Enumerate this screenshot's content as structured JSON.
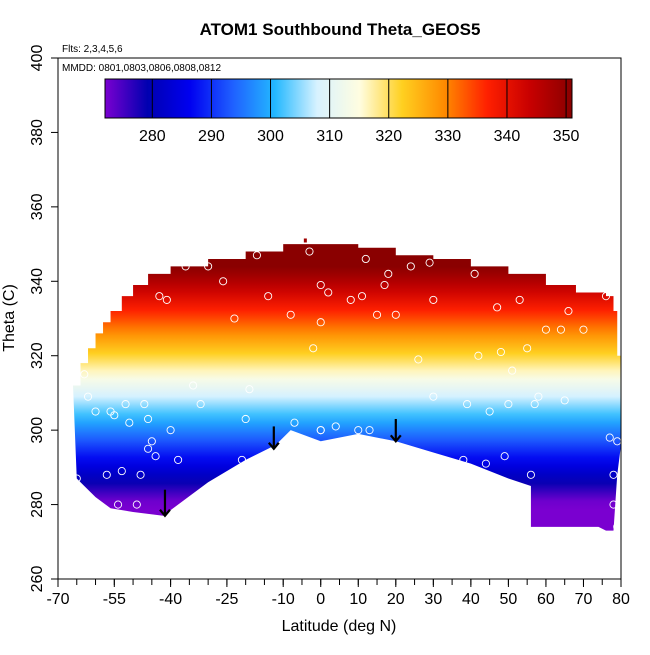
{
  "chart_data": {
    "type": "heatmap",
    "title": "ATOM1 Southbound Theta_GEOS5",
    "subtitle_lines": [
      "Flts: 2,3,4,5,6",
      "MMDD: 0801,0803,0806,0808,0812"
    ],
    "xlabel": "Latitude (deg N)",
    "ylabel": "Theta (C)",
    "xlim": [
      -70,
      80
    ],
    "ylim": [
      260,
      400
    ],
    "xticks": [
      -70,
      -55,
      -40,
      -25,
      -10,
      0,
      10,
      20,
      30,
      40,
      50,
      60,
      70,
      80
    ],
    "xminor_step": 5,
    "yticks": [
      260,
      280,
      300,
      320,
      340,
      360,
      380,
      400
    ],
    "colorbar": {
      "min": 272,
      "max": 351,
      "ticks": [
        280,
        290,
        300,
        310,
        320,
        330,
        340,
        350
      ],
      "stops": [
        "#7a00d0",
        "#0000b0",
        "#0000f0",
        "#1f5fff",
        "#23b8ff",
        "#d8f2ff",
        "#fffde0",
        "#ffd020",
        "#ff8a00",
        "#ff2000",
        "#c80000",
        "#8a0000"
      ]
    },
    "value_model": {
      "description": "Theta field value grows roughly linearly with the vertical theta coordinate",
      "ref_theta": 310,
      "ref_value": 309,
      "slope": 1.25
    },
    "data_envelope": {
      "bottom": [
        [
          -65,
          287
        ],
        [
          -63,
          285
        ],
        [
          -60,
          282
        ],
        [
          -56,
          279
        ],
        [
          -50,
          278
        ],
        [
          -42,
          277
        ],
        [
          -30,
          286
        ],
        [
          -20,
          292
        ],
        [
          -12,
          296
        ],
        [
          -8,
          300
        ],
        [
          0,
          297
        ],
        [
          10,
          299
        ],
        [
          20,
          297
        ],
        [
          30,
          294
        ],
        [
          40,
          291
        ],
        [
          50,
          287
        ],
        [
          56,
          285
        ],
        [
          56,
          274
        ],
        [
          74,
          274
        ],
        [
          76,
          273
        ],
        [
          78,
          273
        ],
        [
          79,
          288
        ],
        [
          80,
          296
        ]
      ],
      "top": [
        [
          -66,
          312
        ],
        [
          -64,
          318
        ],
        [
          -62,
          322
        ],
        [
          -60,
          326
        ],
        [
          -58,
          329
        ],
        [
          -56,
          332
        ],
        [
          -53,
          336
        ],
        [
          -50,
          339
        ],
        [
          -46,
          342
        ],
        [
          -40,
          344
        ],
        [
          -30,
          346
        ],
        [
          -20,
          348
        ],
        [
          -10,
          350
        ],
        [
          0,
          350
        ],
        [
          10,
          349
        ],
        [
          20,
          347
        ],
        [
          30,
          346
        ],
        [
          40,
          344
        ],
        [
          50,
          342
        ],
        [
          60,
          339
        ],
        [
          68,
          337
        ],
        [
          76,
          336
        ],
        [
          78,
          332
        ],
        [
          79,
          320
        ],
        [
          80,
          310
        ]
      ]
    },
    "flight_points": [
      {
        "lat": -65,
        "theta": 287
      },
      {
        "lat": -63,
        "theta": 315
      },
      {
        "lat": -62,
        "theta": 309
      },
      {
        "lat": -60,
        "theta": 305
      },
      {
        "lat": -57,
        "theta": 288
      },
      {
        "lat": -56,
        "theta": 305
      },
      {
        "lat": -55,
        "theta": 304
      },
      {
        "lat": -54,
        "theta": 280
      },
      {
        "lat": -53,
        "theta": 289
      },
      {
        "lat": -52,
        "theta": 307
      },
      {
        "lat": -51,
        "theta": 302
      },
      {
        "lat": -49,
        "theta": 280
      },
      {
        "lat": -48,
        "theta": 288
      },
      {
        "lat": -47,
        "theta": 307
      },
      {
        "lat": -46,
        "theta": 303
      },
      {
        "lat": -46,
        "theta": 295
      },
      {
        "lat": -45,
        "theta": 297
      },
      {
        "lat": -44,
        "theta": 293
      },
      {
        "lat": -43,
        "theta": 336
      },
      {
        "lat": -41,
        "theta": 335
      },
      {
        "lat": -40,
        "theta": 300
      },
      {
        "lat": -38,
        "theta": 292
      },
      {
        "lat": -36,
        "theta": 344
      },
      {
        "lat": -34,
        "theta": 312
      },
      {
        "lat": -32,
        "theta": 307
      },
      {
        "lat": -30,
        "theta": 344
      },
      {
        "lat": -26,
        "theta": 340
      },
      {
        "lat": -23,
        "theta": 330
      },
      {
        "lat": -21,
        "theta": 292
      },
      {
        "lat": -20,
        "theta": 303
      },
      {
        "lat": -19,
        "theta": 311
      },
      {
        "lat": -17,
        "theta": 347
      },
      {
        "lat": -14,
        "theta": 336
      },
      {
        "lat": -8,
        "theta": 331
      },
      {
        "lat": -7,
        "theta": 302
      },
      {
        "lat": -3,
        "theta": 348
      },
      {
        "lat": -2,
        "theta": 322
      },
      {
        "lat": 0,
        "theta": 329
      },
      {
        "lat": 0,
        "theta": 300
      },
      {
        "lat": 0,
        "theta": 339
      },
      {
        "lat": 0,
        "theta": 300
      },
      {
        "lat": 2,
        "theta": 337
      },
      {
        "lat": 4,
        "theta": 301
      },
      {
        "lat": 8,
        "theta": 335
      },
      {
        "lat": 10,
        "theta": 300
      },
      {
        "lat": 11,
        "theta": 336
      },
      {
        "lat": 12,
        "theta": 346
      },
      {
        "lat": 13,
        "theta": 300
      },
      {
        "lat": 15,
        "theta": 331
      },
      {
        "lat": 17,
        "theta": 339
      },
      {
        "lat": 18,
        "theta": 342
      },
      {
        "lat": 20,
        "theta": 331
      },
      {
        "lat": 24,
        "theta": 344
      },
      {
        "lat": 26,
        "theta": 319
      },
      {
        "lat": 29,
        "theta": 345
      },
      {
        "lat": 30,
        "theta": 335
      },
      {
        "lat": 30,
        "theta": 309
      },
      {
        "lat": 38,
        "theta": 292
      },
      {
        "lat": 39,
        "theta": 307
      },
      {
        "lat": 41,
        "theta": 342
      },
      {
        "lat": 42,
        "theta": 320
      },
      {
        "lat": 44,
        "theta": 291
      },
      {
        "lat": 45,
        "theta": 305
      },
      {
        "lat": 47,
        "theta": 333
      },
      {
        "lat": 48,
        "theta": 321
      },
      {
        "lat": 49,
        "theta": 293
      },
      {
        "lat": 50,
        "theta": 307
      },
      {
        "lat": 51,
        "theta": 316
      },
      {
        "lat": 53,
        "theta": 335
      },
      {
        "lat": 55,
        "theta": 322
      },
      {
        "lat": 56,
        "theta": 288
      },
      {
        "lat": 57,
        "theta": 307
      },
      {
        "lat": 58,
        "theta": 309
      },
      {
        "lat": 60,
        "theta": 327
      },
      {
        "lat": 64,
        "theta": 327
      },
      {
        "lat": 65,
        "theta": 308
      },
      {
        "lat": 66,
        "theta": 332
      },
      {
        "lat": 70,
        "theta": 327
      },
      {
        "lat": 76,
        "theta": 336
      },
      {
        "lat": 77,
        "theta": 298
      },
      {
        "lat": 78,
        "theta": 288
      },
      {
        "lat": 78,
        "theta": 280
      },
      {
        "lat": 79,
        "theta": 274
      },
      {
        "lat": 79,
        "theta": 297
      }
    ],
    "arrows": [
      {
        "lat": -41.5,
        "theta_top": 284,
        "theta_bottom": 277
      },
      {
        "lat": -12.5,
        "theta_top": 301,
        "theta_bottom": 295
      },
      {
        "lat": 20,
        "theta_top": 303,
        "theta_bottom": 297
      }
    ]
  }
}
